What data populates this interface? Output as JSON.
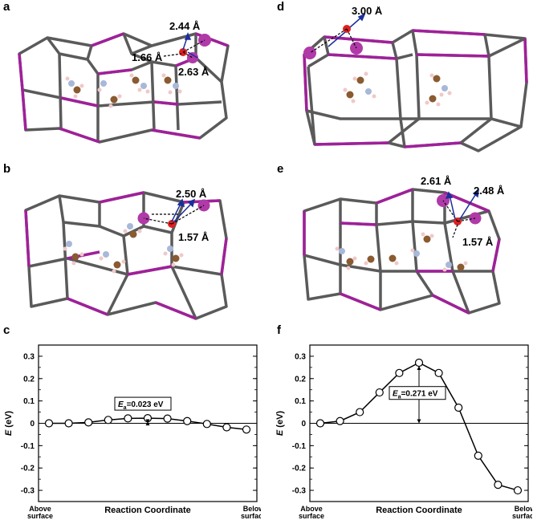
{
  "panels": {
    "a": {
      "letter": "a",
      "distances": [
        "2.44 Å",
        "1.66 Å",
        "2.63 Å"
      ]
    },
    "b": {
      "letter": "b",
      "distances": [
        "2.50 Å",
        "1.57 Å"
      ]
    },
    "c": {
      "letter": "c"
    },
    "d": {
      "letter": "d",
      "distances": [
        "3.00 Å"
      ]
    },
    "e": {
      "letter": "e",
      "distances": [
        "2.61 Å",
        "2.48 Å",
        "1.57 Å"
      ]
    },
    "f": {
      "letter": "f"
    }
  },
  "colors": {
    "cage": "#5a5a5a",
    "cage_pink": "#a0209a",
    "sphere": "#b03aa8",
    "oxygen": "#e02020",
    "arrow": "#1a2f9a",
    "carbon": "#8a5a30",
    "nitrogen": "#a8b8d8",
    "hydrogen": "#f0c8c8"
  },
  "chart_data": [
    {
      "panel": "c",
      "type": "line",
      "xlabel": "Reaction Coordinate",
      "ylabel": "E (eV)",
      "ylabel_main": "E",
      "ylabel_unit": " (eV)",
      "x": [
        1,
        2,
        3,
        4,
        5,
        6,
        7,
        8,
        9,
        10,
        11
      ],
      "values": [
        0.0,
        0.0,
        0.004,
        0.015,
        0.022,
        0.023,
        0.021,
        0.01,
        -0.003,
        -0.018,
        -0.028
      ],
      "ylim": [
        -0.35,
        0.35
      ],
      "yticks": [
        "0.3",
        "0.2",
        "0.1",
        "0",
        "-0.1",
        "-0.2",
        "-0.3"
      ],
      "ytick_values": [
        0.3,
        0.2,
        0.1,
        0,
        -0.1,
        -0.2,
        -0.3
      ],
      "start_label": [
        "Above",
        "surface"
      ],
      "end_label": [
        "Below",
        "surface"
      ],
      "annotation": {
        "prefix": "E",
        "sub": "a",
        "value": "=0.023 eV"
      },
      "barrier_index": 5
    },
    {
      "panel": "f",
      "type": "line",
      "xlabel": "Reaction Coordinate",
      "ylabel": "E (eV)",
      "ylabel_main": "E",
      "ylabel_unit": " (eV)",
      "x": [
        1,
        2,
        3,
        4,
        5,
        6,
        7,
        8,
        9,
        10,
        11
      ],
      "values": [
        0.0,
        0.01,
        0.05,
        0.138,
        0.225,
        0.271,
        0.225,
        0.07,
        -0.145,
        -0.275,
        -0.3
      ],
      "ylim": [
        -0.35,
        0.35
      ],
      "yticks": [
        "0.3",
        "0.2",
        "0.1",
        "0",
        "-0.1",
        "-0.2",
        "-0.3"
      ],
      "ytick_values": [
        0.3,
        0.2,
        0.1,
        0,
        -0.1,
        -0.2,
        -0.3
      ],
      "start_label": [
        "Above",
        "surface"
      ],
      "end_label": [
        "Below",
        "surface"
      ],
      "annotation": {
        "prefix": "E",
        "sub": "a",
        "value": "=0.271 eV"
      },
      "barrier_index": 5
    }
  ]
}
